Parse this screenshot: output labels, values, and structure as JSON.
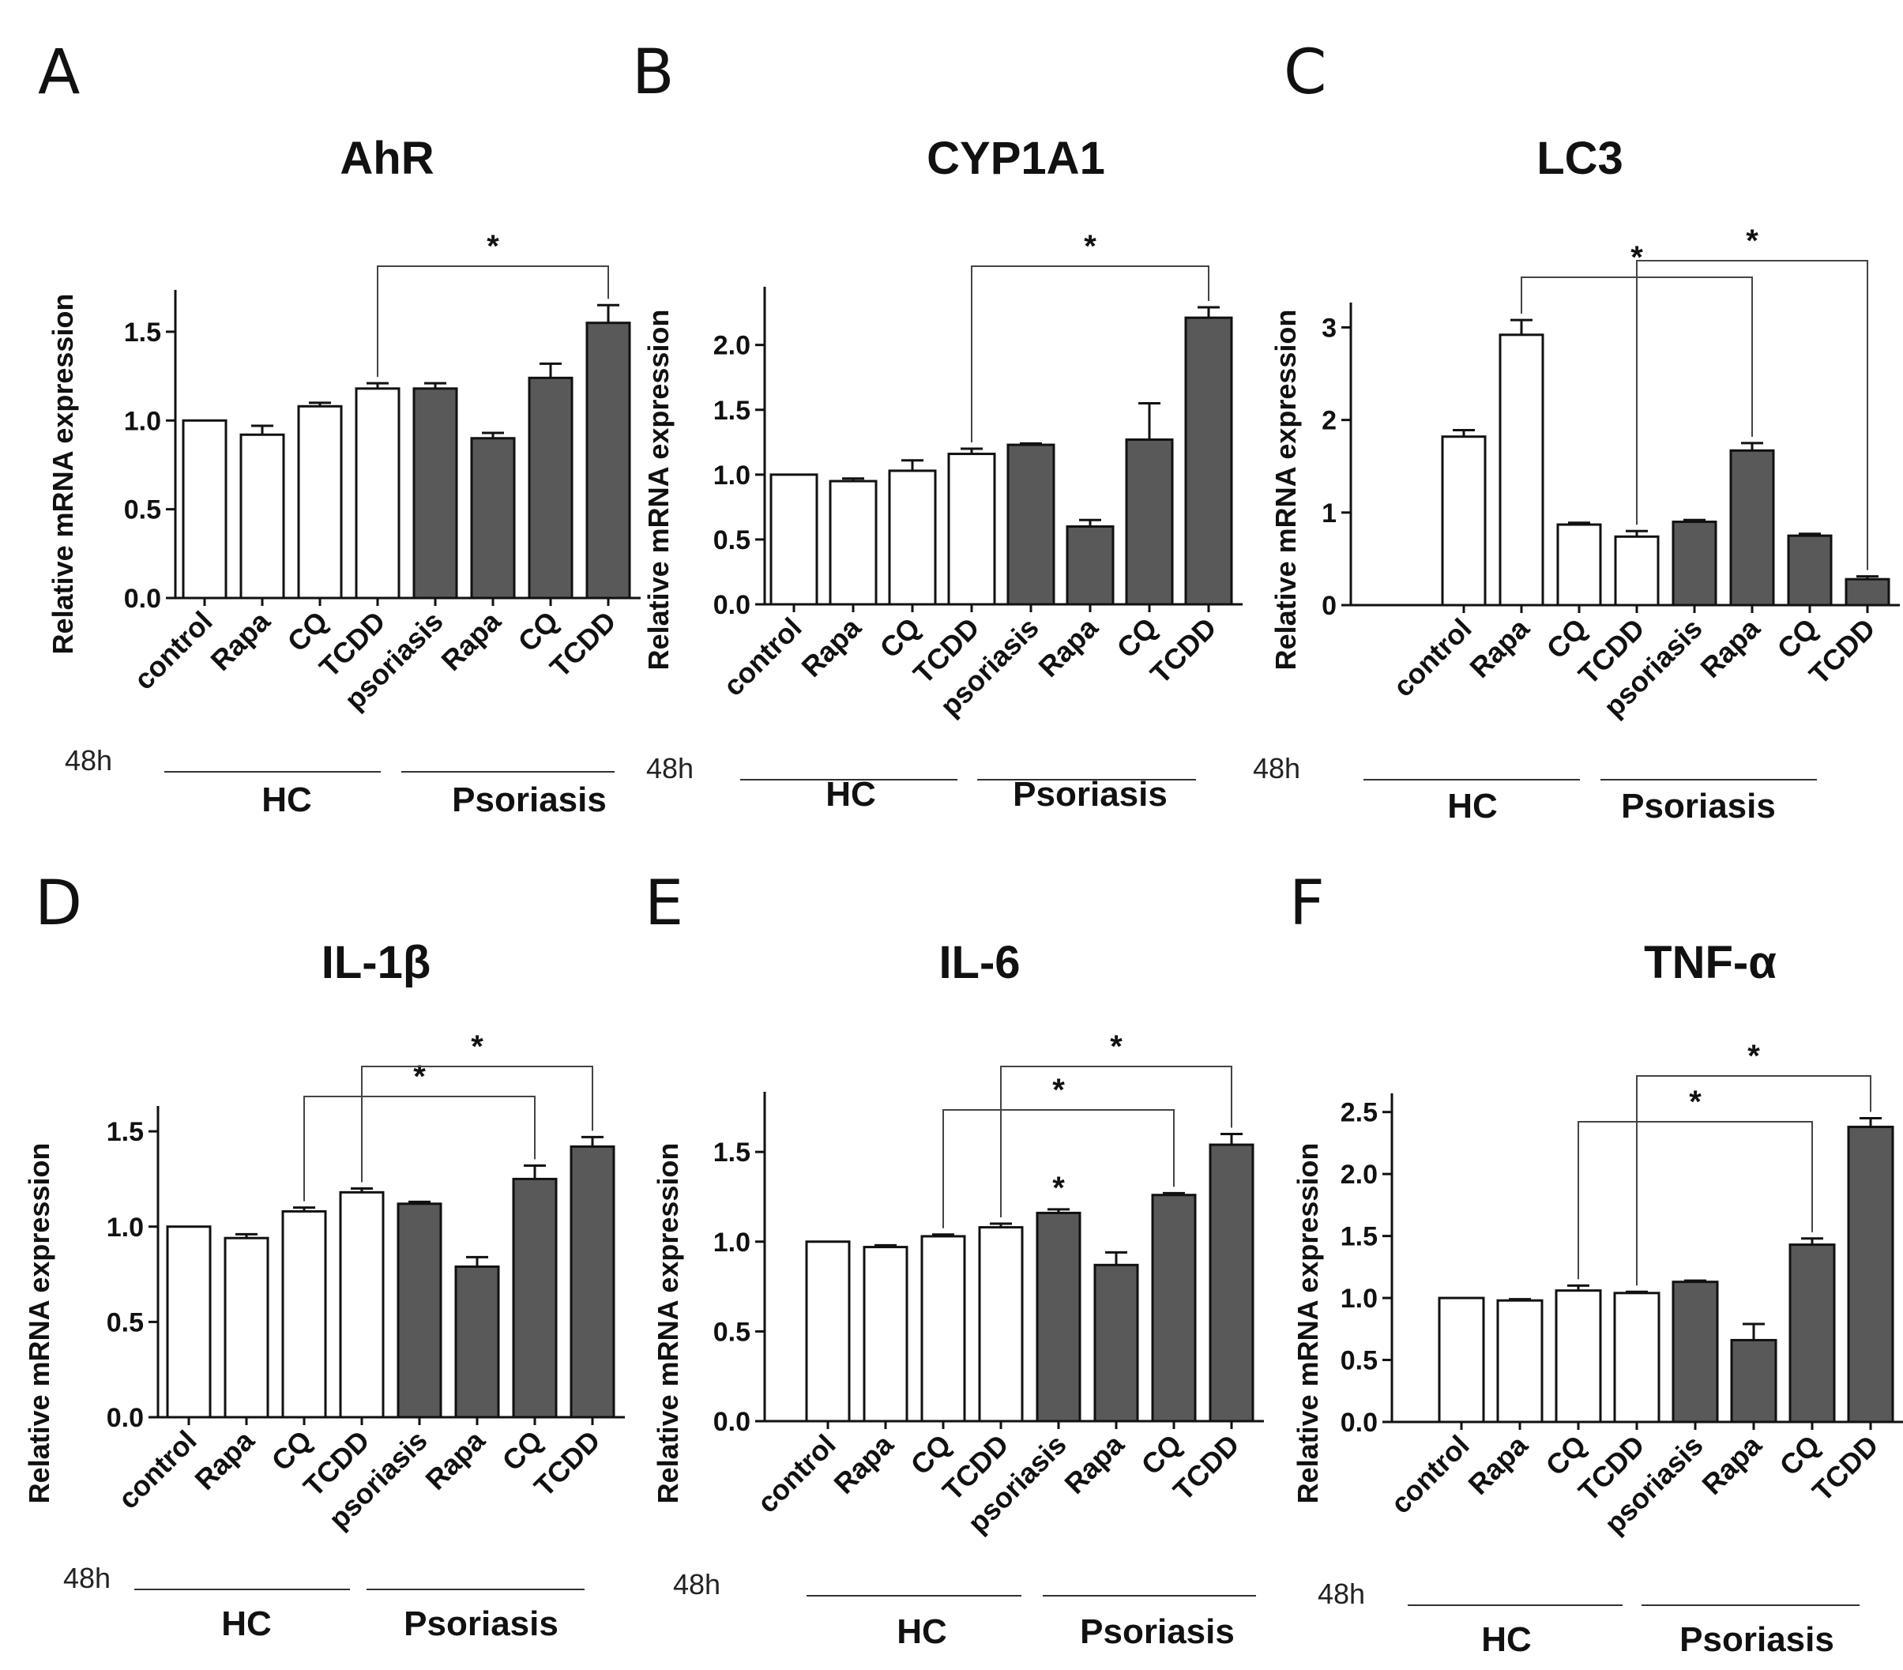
{
  "colors": {
    "hc_fill": "#ffffff",
    "psoriasis_fill": "#595959",
    "stroke": "#111111"
  },
  "chart_data": [
    {
      "type": "bar",
      "panel": "A",
      "title": "AhR",
      "ylabel": "Relative mRNA expression",
      "ylim": [
        0,
        1.7
      ],
      "ticks": [
        0.0,
        0.5,
        1.0,
        1.5
      ],
      "tick_labels": [
        "0.0",
        "0.5",
        "1.0",
        "1.5"
      ],
      "categories": [
        "control",
        "Rapa",
        "CQ",
        "TCDD",
        "psoriasis",
        "Rapa",
        "CQ",
        "TCDD"
      ],
      "values": [
        1.0,
        0.92,
        1.08,
        1.18,
        1.18,
        0.9,
        1.24,
        1.55
      ],
      "errors": [
        0.0,
        0.05,
        0.02,
        0.03,
        0.03,
        0.03,
        0.08,
        0.1
      ],
      "groups": [
        {
          "label": "HC",
          "time": "48h",
          "member_indices": [
            0,
            1,
            2,
            3
          ],
          "fill": "hc"
        },
        {
          "label": "Psoriasis",
          "member_indices": [
            4,
            5,
            6,
            7
          ],
          "fill": "psoriasis"
        }
      ],
      "significance": [
        {
          "from": 3,
          "to": 7,
          "label": "*"
        }
      ],
      "point_stars": []
    },
    {
      "type": "bar",
      "panel": "B",
      "title": "CYP1A1",
      "ylabel": "Relative mRNA expression",
      "ylim": [
        0,
        2.4
      ],
      "ticks": [
        0.0,
        0.5,
        1.0,
        1.5,
        2.0
      ],
      "tick_labels": [
        "0.0",
        "0.5",
        "1.0",
        "1.5",
        "2.0"
      ],
      "categories": [
        "control",
        "Rapa",
        "CQ",
        "TCDD",
        "psoriasis",
        "Rapa",
        "CQ",
        "TCDD"
      ],
      "values": [
        1.0,
        0.95,
        1.03,
        1.16,
        1.23,
        0.6,
        1.27,
        2.21
      ],
      "errors": [
        0.0,
        0.02,
        0.08,
        0.04,
        0.01,
        0.05,
        0.28,
        0.08
      ],
      "groups": [
        {
          "label": "HC",
          "time": "48h",
          "member_indices": [
            0,
            1,
            2,
            3
          ],
          "fill": "hc"
        },
        {
          "label": "Psoriasis",
          "member_indices": [
            4,
            5,
            6,
            7
          ],
          "fill": "psoriasis"
        }
      ],
      "significance": [
        {
          "from": 3,
          "to": 7,
          "label": "*"
        }
      ],
      "point_stars": []
    },
    {
      "type": "bar",
      "panel": "C",
      "title": "LC3",
      "ylabel": "Relative mRNA expression",
      "ylim": [
        0,
        3.2
      ],
      "ticks": [
        0,
        1,
        2,
        3
      ],
      "tick_labels": [
        "0",
        "1",
        "2",
        "3"
      ],
      "categories": [
        "control",
        "Rapa",
        "CQ",
        "TCDD",
        "psoriasis",
        "Rapa",
        "CQ",
        "TCDD"
      ],
      "values": [
        1.82,
        2.92,
        0.87,
        0.74,
        0.9,
        1.67,
        0.75,
        0.28
      ],
      "errors": [
        0.07,
        0.16,
        0.02,
        0.06,
        0.02,
        0.08,
        0.02,
        0.03
      ],
      "groups": [
        {
          "label": "HC",
          "time": "48h",
          "member_indices": [
            0,
            1,
            2,
            3
          ],
          "fill": "hc"
        },
        {
          "label": "Psoriasis",
          "member_indices": [
            4,
            5,
            6,
            7
          ],
          "fill": "psoriasis"
        }
      ],
      "significance": [
        {
          "from": 1,
          "to": 5,
          "label": "*"
        },
        {
          "from": 3,
          "to": 7,
          "label": "*"
        }
      ],
      "point_stars": []
    },
    {
      "type": "bar",
      "panel": "D",
      "title": "IL-1β",
      "ylabel": "Relative mRNA expression",
      "ylim": [
        0,
        1.6
      ],
      "ticks": [
        0.0,
        0.5,
        1.0,
        1.5
      ],
      "tick_labels": [
        "0.0",
        "0.5",
        "1.0",
        "1.5"
      ],
      "categories": [
        "control",
        "Rapa",
        "CQ",
        "TCDD",
        "psoriasis",
        "Rapa",
        "CQ",
        "TCDD"
      ],
      "values": [
        1.0,
        0.94,
        1.08,
        1.18,
        1.12,
        0.79,
        1.25,
        1.42
      ],
      "errors": [
        0.0,
        0.02,
        0.02,
        0.02,
        0.01,
        0.05,
        0.07,
        0.05
      ],
      "groups": [
        {
          "label": "HC",
          "time": "48h",
          "member_indices": [
            0,
            1,
            2,
            3
          ],
          "fill": "hc"
        },
        {
          "label": "Psoriasis",
          "member_indices": [
            4,
            5,
            6,
            7
          ],
          "fill": "psoriasis"
        }
      ],
      "significance": [
        {
          "from": 2,
          "to": 6,
          "label": "*"
        },
        {
          "from": 3,
          "to": 7,
          "label": "*"
        }
      ],
      "point_stars": []
    },
    {
      "type": "bar",
      "panel": "E",
      "title": "IL-6",
      "ylabel": "Relative mRNA expression",
      "ylim": [
        0,
        1.8
      ],
      "ticks": [
        0.0,
        0.5,
        1.0,
        1.5
      ],
      "tick_labels": [
        "0.0",
        "0.5",
        "1.0",
        "1.5"
      ],
      "categories": [
        "control",
        "Rapa",
        "CQ",
        "TCDD",
        "psoriasis",
        "Rapa",
        "CQ",
        "TCDD"
      ],
      "values": [
        1.0,
        0.97,
        1.03,
        1.08,
        1.16,
        0.87,
        1.26,
        1.54
      ],
      "errors": [
        0.0,
        0.01,
        0.01,
        0.02,
        0.02,
        0.07,
        0.01,
        0.06
      ],
      "groups": [
        {
          "label": "HC",
          "time": "48h",
          "member_indices": [
            0,
            1,
            2,
            3
          ],
          "fill": "hc"
        },
        {
          "label": "Psoriasis",
          "member_indices": [
            4,
            5,
            6,
            7
          ],
          "fill": "psoriasis"
        }
      ],
      "significance": [
        {
          "from": 2,
          "to": 6,
          "label": "*"
        },
        {
          "from": 3,
          "to": 7,
          "label": "*"
        }
      ],
      "point_stars": [
        {
          "index": 4,
          "label": "*"
        }
      ]
    },
    {
      "type": "bar",
      "panel": "F",
      "title": "TNF-α",
      "ylabel": "Relative mRNA expression",
      "ylim": [
        0,
        2.6
      ],
      "ticks": [
        0.0,
        0.5,
        1.0,
        1.5,
        2.0,
        2.5
      ],
      "tick_labels": [
        "0.0",
        "0.5",
        "1.0",
        "1.5",
        "2.0",
        "2.5"
      ],
      "categories": [
        "control",
        "Rapa",
        "CQ",
        "TCDD",
        "psoriasis",
        "Rapa",
        "CQ",
        "TCDD"
      ],
      "values": [
        1.0,
        0.98,
        1.06,
        1.04,
        1.13,
        0.66,
        1.43,
        2.38
      ],
      "errors": [
        0.0,
        0.01,
        0.04,
        0.01,
        0.01,
        0.13,
        0.05,
        0.07
      ],
      "groups": [
        {
          "label": "HC",
          "time": "48h",
          "member_indices": [
            0,
            1,
            2,
            3
          ],
          "fill": "hc"
        },
        {
          "label": "Psoriasis",
          "member_indices": [
            4,
            5,
            6,
            7
          ],
          "fill": "psoriasis"
        }
      ],
      "significance": [
        {
          "from": 2,
          "to": 6,
          "label": "*"
        },
        {
          "from": 3,
          "to": 7,
          "label": "*"
        }
      ],
      "point_stars": []
    }
  ]
}
